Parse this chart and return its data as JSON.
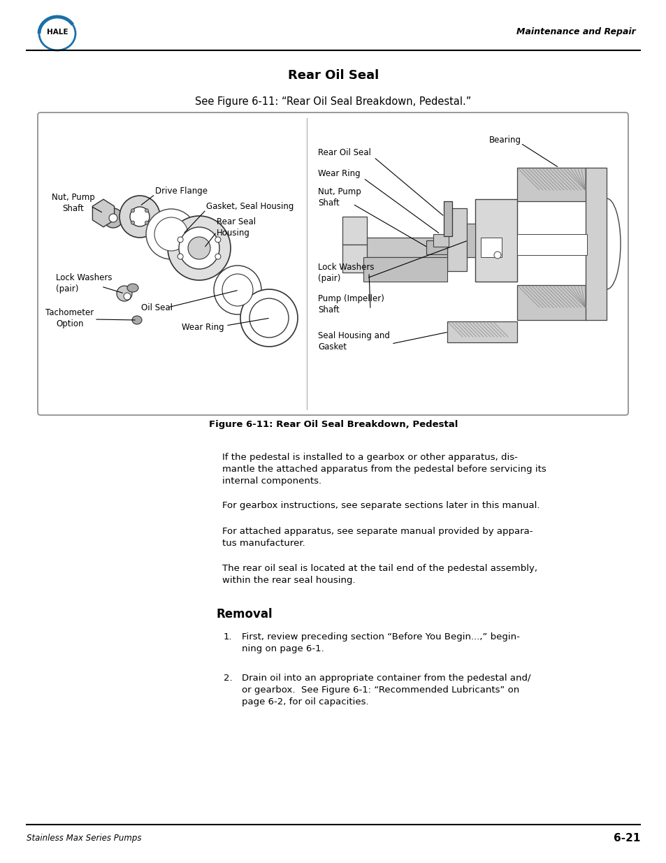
{
  "page_bg": "#ffffff",
  "header_text_right": "Maintenance and Repair",
  "footer_text_left": "Stainless Max Series Pumps",
  "footer_text_right": "6-21",
  "section_title": "Rear Oil Seal",
  "figure_ref": "See Figure 6-11: “Rear Oil Seal Breakdown, Pedestal.”",
  "figure_caption": "Figure 6-11: Rear Oil Seal Breakdown, Pedestal",
  "body_paragraphs": [
    "If the pedestal is installed to a gearbox or other apparatus, dis-\nmantle the attached apparatus from the pedestal before servicing its\ninternal components.",
    "For gearbox instructions, see separate sections later in this manual.",
    "For attached apparatus, see separate manual provided by appara-\ntus manufacturer.",
    "The rear oil seal is located at the tail end of the pedestal assembly,\nwithin the rear seal housing."
  ],
  "removal_title": "Removal",
  "removal_items": [
    "First, review preceding section “Before You Begin...,” begin-\nning on page 6-1.",
    "Drain oil into an appropriate container from the pedestal and/\nor gearbox.  See Figure 6-1: “Recommended Lubricants” on\npage 6-2, for oil capacities."
  ]
}
